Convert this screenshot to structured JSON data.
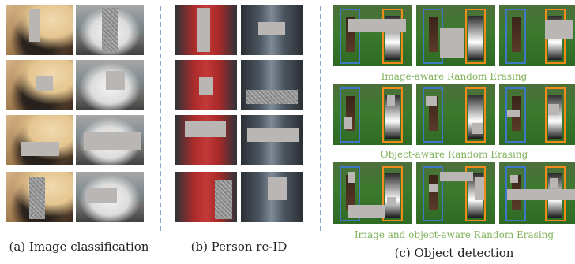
{
  "captions": {
    "a": "(a) Image classification",
    "b": "(b) Person re-ID",
    "c": "(c) Object detection"
  },
  "detection_labels": {
    "image_aware": "Image-aware Random Erasing",
    "object_aware": "Object-aware Random Erasing",
    "image_object_aware": "Image and object-aware Random Erasing"
  },
  "colors": {
    "label_green": "#7fb25b",
    "bbox_blue": "#3c78c6",
    "bbox_orange": "#f08a1a",
    "divider": "#8ea6cf",
    "erase_gray": "#b9b6b4"
  }
}
